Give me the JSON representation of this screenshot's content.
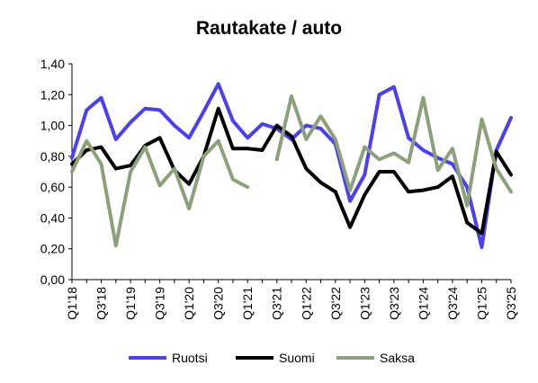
{
  "chart_data": {
    "type": "line",
    "title": "Rautakate / auto",
    "xlabel": "",
    "ylabel": "",
    "ylim": [
      0,
      1.4
    ],
    "yticks": [
      "0,00",
      "0,20",
      "0,40",
      "0,60",
      "0,80",
      "1,00",
      "1,20",
      "1,40"
    ],
    "grid": false,
    "legend_position": "bottom",
    "categories": [
      "Q1'18",
      "Q2'18",
      "Q3'18",
      "Q4'18",
      "Q1'19",
      "Q2'19",
      "Q3'19",
      "Q4'19",
      "Q1'20",
      "Q2'20",
      "Q3'20",
      "Q4'20",
      "Q1'21",
      "Q2'21",
      "Q3'21",
      "Q4'21",
      "Q1'22",
      "Q2'22",
      "Q3'22",
      "Q4'22",
      "Q1'23",
      "Q2'23",
      "Q3'23",
      "Q4'23",
      "Q1'24",
      "Q2'24",
      "Q3'24",
      "Q4'24",
      "Q1'25",
      "Q2'25",
      "Q3'25"
    ],
    "xtick_labels": [
      "Q1'18",
      "",
      "Q3'18",
      "",
      "Q1'19",
      "",
      "Q3'19",
      "",
      "Q1'20",
      "",
      "Q3'20",
      "",
      "Q1'21",
      "",
      "Q3'21",
      "",
      "Q1'22",
      "",
      "Q3'22",
      "",
      "Q1'23",
      "",
      "Q3'23",
      "",
      "Q1'24",
      "",
      "Q3'24",
      "",
      "Q1'25",
      "",
      "Q3'25"
    ],
    "series": [
      {
        "name": "Ruotsi",
        "color": "#4a40f2",
        "values": [
          0.79,
          1.1,
          1.18,
          0.91,
          1.02,
          1.11,
          1.1,
          1.0,
          0.92,
          1.09,
          1.27,
          1.03,
          0.92,
          1.01,
          0.98,
          0.91,
          1.0,
          0.98,
          0.88,
          0.51,
          0.68,
          1.2,
          1.25,
          0.92,
          0.84,
          0.79,
          0.75,
          0.6,
          0.21,
          0.84,
          1.05
        ]
      },
      {
        "name": "Suomi",
        "color": "#000000",
        "values": [
          0.75,
          0.84,
          0.86,
          0.72,
          0.74,
          0.87,
          0.92,
          0.71,
          0.62,
          0.8,
          1.11,
          0.85,
          0.85,
          0.84,
          1.0,
          0.93,
          0.72,
          0.63,
          0.57,
          0.34,
          0.55,
          0.7,
          0.7,
          0.57,
          0.58,
          0.6,
          0.67,
          0.37,
          0.3,
          0.83,
          0.68
        ]
      },
      {
        "name": "Saksa",
        "color": "#8aa17a",
        "values": [
          0.7,
          0.9,
          0.75,
          0.22,
          0.7,
          0.86,
          0.61,
          0.72,
          0.46,
          0.8,
          0.9,
          0.65,
          0.6,
          null,
          0.78,
          1.19,
          0.91,
          1.06,
          0.91,
          0.58,
          0.86,
          0.78,
          0.82,
          0.76,
          1.18,
          0.71,
          0.85,
          0.48,
          1.04,
          0.72,
          0.57
        ]
      }
    ]
  }
}
